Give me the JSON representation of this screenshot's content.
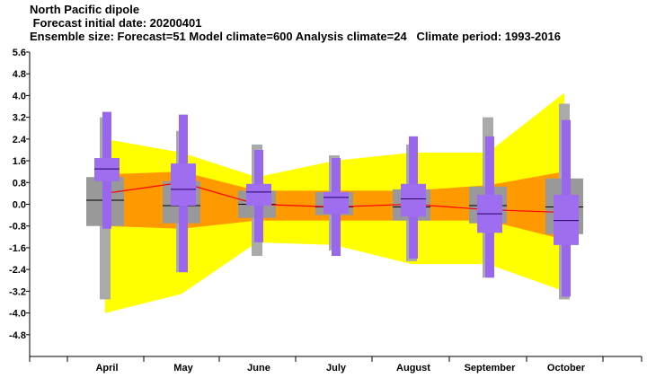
{
  "title_lines": [
    "North Pacific dipole",
    " Forecast initial date: 20200401",
    "Ensemble size: Forecast=51 Model climate=600 Analysis climate=24   Climate period: 1993-2016"
  ],
  "colors": {
    "outer_band": "#ffff00",
    "inner_band": "#ff9900",
    "climate_box_outer": "#aaaaaa",
    "climate_box_inner": "#999999",
    "forecast_box_outer": "#9966ee",
    "forecast_box_inner": "#9f6ef0",
    "median_line": "#000000",
    "mean_line": "#ff0000",
    "axis": "#000000"
  },
  "chart_data": {
    "type": "box",
    "categories": [
      "April",
      "May",
      "June",
      "July",
      "August",
      "September",
      "October"
    ],
    "yticks": [
      5.6,
      4.8,
      4.0,
      3.2,
      2.4,
      1.6,
      0.8,
      0.0,
      -0.8,
      -1.6,
      -2.4,
      -3.2,
      -4.0,
      -4.8
    ],
    "ytick_labels": [
      "5.6",
      "4.8",
      "4.0",
      "3.2",
      "2.4",
      "1.6",
      "0.8",
      "0.0",
      "-0.8",
      "-1.6",
      "-2.4",
      "-3.2",
      "-4.0",
      "-4.8"
    ],
    "ylim": [
      -5.6,
      5.6
    ],
    "bands": {
      "outer_upper": [
        2.4,
        1.9,
        1.0,
        1.6,
        1.9,
        1.9,
        4.1
      ],
      "outer_lower": [
        -4.0,
        -3.3,
        -1.4,
        -1.5,
        -2.2,
        -2.2,
        -3.2
      ],
      "inner_upper": [
        1.1,
        1.2,
        0.5,
        0.5,
        0.5,
        0.7,
        1.2
      ],
      "inner_lower": [
        -0.8,
        -0.9,
        -0.6,
        -0.6,
        -0.6,
        -0.6,
        -1.3
      ]
    },
    "climate": [
      {
        "whisker_low": -3.5,
        "q1": -0.8,
        "median": 0.15,
        "q3": 1.0,
        "whisker_high": 3.2
      },
      {
        "whisker_low": -2.5,
        "q1": -0.7,
        "median": -0.05,
        "q3": 0.85,
        "whisker_high": 2.7
      },
      {
        "whisker_low": -1.9,
        "q1": -0.5,
        "median": 0.0,
        "q3": 0.5,
        "whisker_high": 2.2
      },
      {
        "whisker_low": -1.7,
        "q1": -0.4,
        "median": -0.1,
        "q3": 0.45,
        "whisker_high": 1.8
      },
      {
        "whisker_low": -2.1,
        "q1": -0.6,
        "median": -0.1,
        "q3": 0.55,
        "whisker_high": 2.2
      },
      {
        "whisker_low": -2.7,
        "q1": -0.7,
        "median": -0.05,
        "q3": 0.65,
        "whisker_high": 3.2
      },
      {
        "whisker_low": -3.5,
        "q1": -1.1,
        "median": -0.1,
        "q3": 0.95,
        "whisker_high": 3.7
      }
    ],
    "forecast": [
      {
        "whisker_low": -0.9,
        "q1": 0.85,
        "median": 1.3,
        "q3": 1.7,
        "whisker_high": 3.4
      },
      {
        "whisker_low": -2.5,
        "q1": -0.05,
        "median": 0.55,
        "q3": 1.5,
        "whisker_high": 3.3
      },
      {
        "whisker_low": -1.4,
        "q1": -0.05,
        "median": 0.45,
        "q3": 0.75,
        "whisker_high": 2.0
      },
      {
        "whisker_low": -1.9,
        "q1": -0.35,
        "median": 0.25,
        "q3": 0.45,
        "whisker_high": 1.7
      },
      {
        "whisker_low": -2.0,
        "q1": -0.45,
        "median": 0.2,
        "q3": 0.75,
        "whisker_high": 2.5
      },
      {
        "whisker_low": -2.7,
        "q1": -1.05,
        "median": -0.35,
        "q3": 0.35,
        "whisker_high": 2.5
      },
      {
        "whisker_low": -3.4,
        "q1": -1.5,
        "median": -0.6,
        "q3": 0.35,
        "whisker_high": 3.1
      }
    ],
    "mean_line": [
      0.4,
      0.8,
      0.0,
      -0.1,
      0.0,
      -0.2,
      -0.3
    ]
  }
}
